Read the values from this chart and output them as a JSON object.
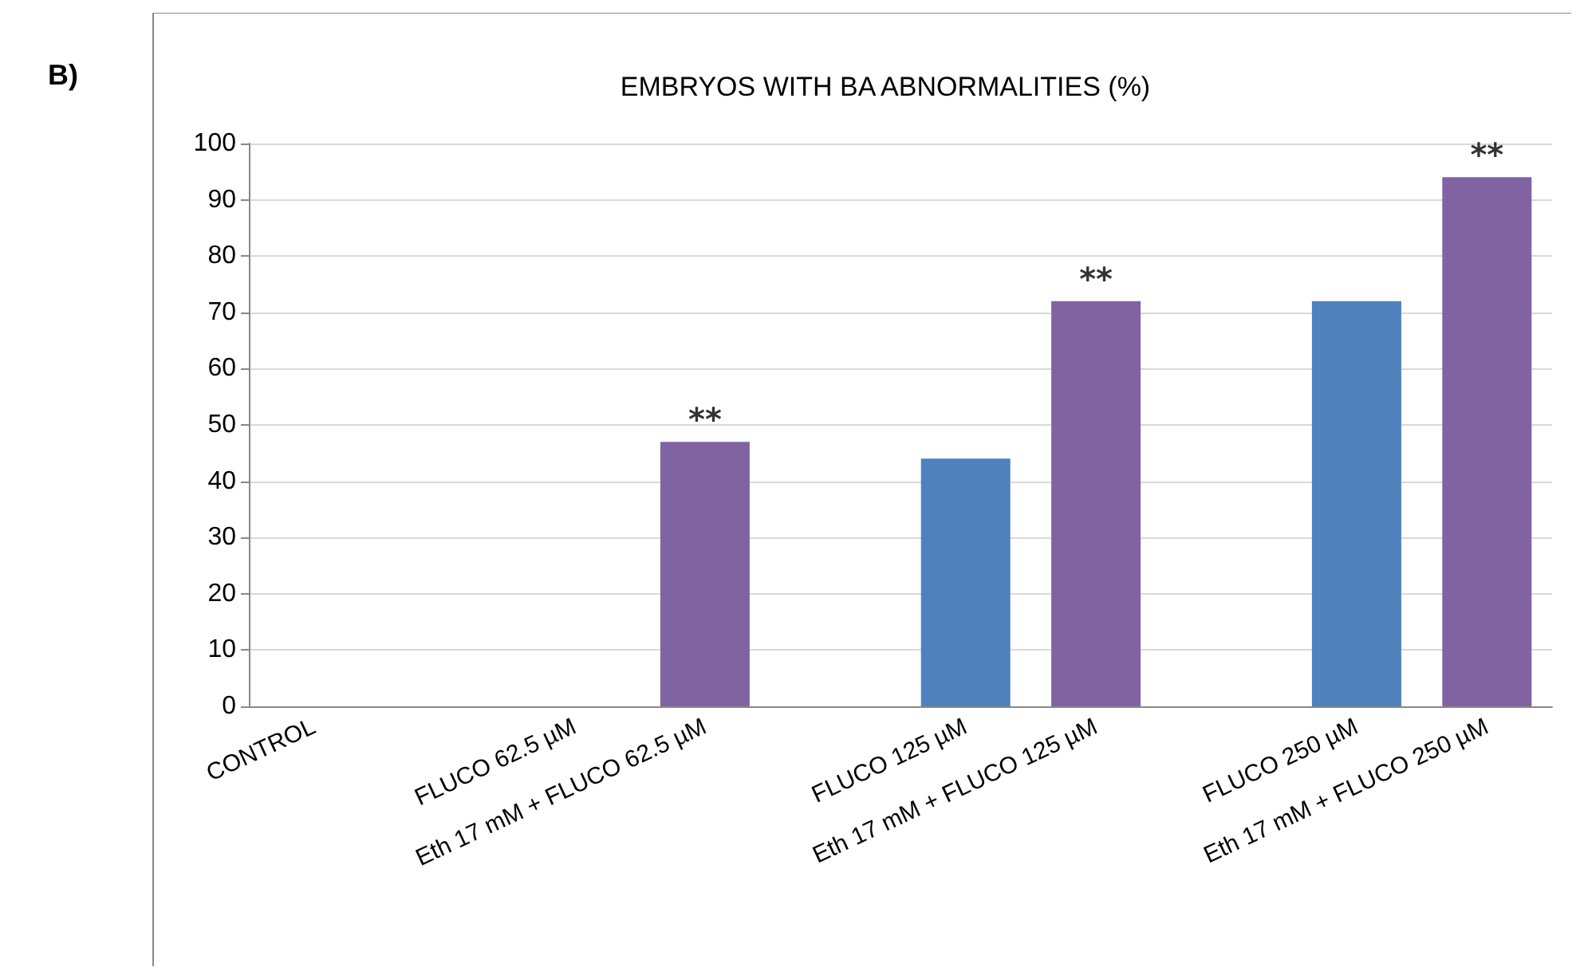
{
  "chart_data": {
    "type": "bar",
    "title": "EMBRYOS WITH BA ABNORMALITIES (%)",
    "categories": [
      "CONTROL",
      null,
      "FLUCO 62.5 µM",
      "Eth 17 mM + FLUCO 62.5 µM",
      null,
      "FLUCO 125 µM",
      "Eth 17 mM + FLUCO 125 µM",
      null,
      "FLUCO 250 µM",
      "Eth 17 mM + FLUCO 250 µM"
    ],
    "values": [
      0,
      null,
      0,
      47,
      null,
      44,
      72,
      null,
      72,
      94
    ],
    "colors": [
      "#4f81bd",
      "#4f81bd",
      "#4f81bd",
      "#8064a2",
      "#4f81bd",
      "#4f81bd",
      "#8064a2",
      "#4f81bd",
      "#4f81bd",
      "#8064a2"
    ],
    "ylim": [
      0,
      100
    ],
    "yticks": [
      0,
      10,
      20,
      30,
      40,
      50,
      60,
      70,
      80,
      90,
      100
    ],
    "grid": "y",
    "annotations": [
      "B)",
      {
        "text": "**",
        "x": "Eth 17 mM + FLUCO 62.5 µM",
        "y": 47
      },
      {
        "text": "**",
        "x": "Eth 17 mM + FLUCO 125 µM",
        "y": 72
      },
      {
        "text": "**",
        "x": "Eth 17 mM + FLUCO 250 µM",
        "y": 94
      }
    ]
  }
}
